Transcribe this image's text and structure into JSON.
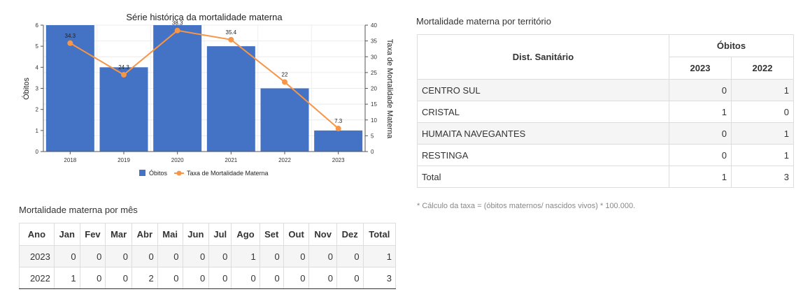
{
  "chart_data": {
    "type": "bar",
    "title": "Série histórica da mortalidade materna",
    "categories": [
      "2018",
      "2019",
      "2020",
      "2021",
      "2022",
      "2023"
    ],
    "series": [
      {
        "name": "Óbitos",
        "type": "bar",
        "axis": "left",
        "color": "#4472c4",
        "values": [
          6,
          4,
          6,
          5,
          3,
          1
        ]
      },
      {
        "name": "Taxa de Mortalidade Materna",
        "type": "line",
        "axis": "right",
        "color": "#f79646",
        "values": [
          34.3,
          24.3,
          38.3,
          35.4,
          22,
          7.3
        ]
      }
    ],
    "ylabel": "Óbitos",
    "y2label": "Taxa de Mortalidade Materna",
    "ylim": [
      0,
      6
    ],
    "y2lim": [
      0,
      40
    ],
    "yticks": [
      "0",
      "1",
      "2",
      "3",
      "4",
      "5",
      "6"
    ],
    "y2ticks": [
      "0",
      "5",
      "10",
      "15",
      "20",
      "25",
      "30",
      "35",
      "40"
    ],
    "line_labels": [
      "34.3",
      "24.3",
      "38.3",
      "35.4",
      "22",
      "7.3"
    ],
    "grid": true,
    "legend": "bottom"
  },
  "territory": {
    "title": "Mortalidade materna por território",
    "header_district": "Dist. Sanitário",
    "header_group": "Óbitos",
    "header_years": [
      "2023",
      "2022"
    ],
    "rows": [
      {
        "name": "CENTRO SUL",
        "v2023": "0",
        "v2022": "1"
      },
      {
        "name": "CRISTAL",
        "v2023": "1",
        "v2022": "0"
      },
      {
        "name": "HUMAITA NAVEGANTES",
        "v2023": "0",
        "v2022": "1"
      },
      {
        "name": "RESTINGA",
        "v2023": "0",
        "v2022": "1"
      }
    ],
    "total": {
      "label": "Total",
      "v2023": "1",
      "v2022": "3"
    }
  },
  "footnote": "* Cálculo da taxa = (óbitos maternos/ nascidos vivos) * 100.000.",
  "monthly": {
    "title": "Mortalidade materna por mês",
    "headers": [
      "Ano",
      "Jan",
      "Fev",
      "Mar",
      "Abr",
      "Mai",
      "Jun",
      "Jul",
      "Ago",
      "Set",
      "Out",
      "Nov",
      "Dez",
      "Total"
    ],
    "rows": [
      [
        "2023",
        "0",
        "0",
        "0",
        "0",
        "0",
        "0",
        "0",
        "1",
        "0",
        "0",
        "0",
        "0",
        "1"
      ],
      [
        "2022",
        "1",
        "0",
        "0",
        "2",
        "0",
        "0",
        "0",
        "0",
        "0",
        "0",
        "0",
        "0",
        "3"
      ]
    ]
  }
}
